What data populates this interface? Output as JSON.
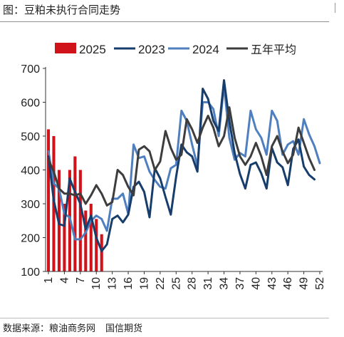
{
  "title": "图：豆粕未执行合同走势",
  "source": {
    "label": "数据来源：粮油商务网",
    "org": "国信期货"
  },
  "chart_data": {
    "type": "bar+line",
    "x": [
      1,
      2,
      3,
      4,
      5,
      6,
      7,
      8,
      9,
      10,
      11,
      12,
      13,
      14,
      15,
      16,
      17,
      18,
      19,
      20,
      21,
      22,
      23,
      24,
      25,
      26,
      27,
      28,
      29,
      30,
      31,
      32,
      33,
      34,
      35,
      36,
      37,
      38,
      39,
      40,
      41,
      42,
      43,
      44,
      45,
      46,
      47,
      48,
      49,
      50,
      51,
      52
    ],
    "x_tick_labels": [
      "1",
      "4",
      "7",
      "10",
      "13",
      "16",
      "19",
      "22",
      "25",
      "28",
      "31",
      "34",
      "37",
      "40",
      "43",
      "46",
      "49",
      "52"
    ],
    "ylim": [
      100,
      700
    ],
    "y_ticks": [
      100,
      200,
      300,
      400,
      500,
      600,
      700
    ],
    "legend_position": "top",
    "grid": false,
    "series": [
      {
        "name": "2025",
        "kind": "bar",
        "color": "#d0121b",
        "values": [
          520,
          500,
          400,
          300,
          400,
          440,
          400,
          280,
          300,
          255,
          210,
          null,
          null,
          null,
          null,
          null,
          null,
          null,
          null,
          null,
          null,
          null,
          null,
          null,
          null,
          null,
          null,
          null,
          null,
          null,
          null,
          null,
          null,
          null,
          null,
          null,
          null,
          null,
          null,
          null,
          null,
          null,
          null,
          null,
          null,
          null,
          null,
          null,
          null,
          null,
          null,
          null
        ]
      },
      {
        "name": "2023",
        "kind": "line",
        "color": "#163d6b",
        "values": [
          440,
          310,
          240,
          235,
          375,
          335,
          300,
          225,
          265,
          200,
          160,
          180,
          255,
          265,
          245,
          268,
          350,
          365,
          335,
          260,
          405,
          375,
          320,
          268,
          380,
          475,
          452,
          440,
          395,
          640,
          610,
          545,
          515,
          665,
          545,
          450,
          388,
          345,
          415,
          422,
          390,
          345,
          465,
          422,
          408,
          355,
          462,
          490,
          410,
          385,
          372,
          null
        ]
      },
      {
        "name": "2024",
        "kind": "line",
        "color": "#4f7fbf",
        "values": [
          455,
          360,
          345,
          270,
          260,
          195,
          195,
          215,
          250,
          265,
          255,
          220,
          315,
          315,
          330,
          270,
          475,
          435,
          440,
          395,
          370,
          350,
          345,
          405,
          415,
          575,
          545,
          475,
          412,
          600,
          600,
          580,
          500,
          650,
          495,
          430,
          450,
          440,
          575,
          520,
          495,
          445,
          575,
          545,
          445,
          475,
          485,
          445,
          550,
          505,
          470,
          420
        ]
      },
      {
        "name": "五年平均",
        "kind": "line",
        "color": "#3d3d3d",
        "values": [
          430,
          395,
          345,
          330,
          330,
          325,
          330,
          300,
          325,
          355,
          330,
          295,
          305,
          400,
          385,
          350,
          325,
          460,
          470,
          455,
          400,
          425,
          515,
          465,
          430,
          445,
          550,
          520,
          480,
          525,
          560,
          525,
          470,
          500,
          585,
          495,
          440,
          415,
          440,
          480,
          440,
          385,
          470,
          500,
          455,
          420,
          445,
          525,
          480,
          435,
          400,
          null
        ]
      }
    ]
  }
}
